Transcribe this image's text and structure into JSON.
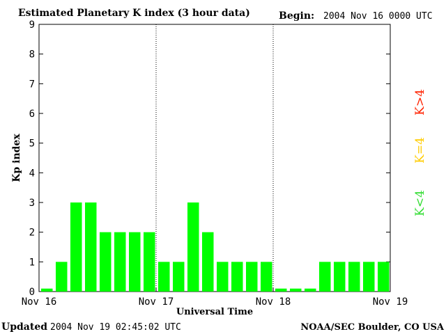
{
  "chart_data": {
    "type": "bar",
    "title": "Estimated Planetary K index (3 hour data)",
    "begin_label": "Begin:",
    "begin_value": "2004 Nov 16 0000 UTC",
    "xlabel": "Universal Time",
    "ylabel": "Kp index",
    "ylim": [
      0,
      9
    ],
    "yticks": [
      "0",
      "1",
      "2",
      "3",
      "4",
      "5",
      "6",
      "7",
      "8",
      "9"
    ],
    "day_labels": [
      "Nov 16",
      "Nov 17",
      "Nov 18",
      "Nov 19"
    ],
    "values": [
      0.1,
      1,
      3,
      3,
      2,
      2,
      2,
      2,
      1,
      1,
      3,
      2,
      1,
      1,
      1,
      1,
      0.1,
      0.1,
      0.1,
      1,
      1,
      1,
      1,
      1
    ],
    "bar_color": "#00ff00",
    "legend": [
      {
        "label": "K<4",
        "color": "#33dd33"
      },
      {
        "label": "K=4",
        "color": "#ffcc00"
      },
      {
        "label": "K>4",
        "color": "#ff2200"
      }
    ],
    "grid": false
  },
  "footer": {
    "updated_label": "Updated",
    "updated_value": "2004 Nov 19 02:45:02 UTC",
    "source": "NOAA/SEC Boulder, CO USA"
  }
}
